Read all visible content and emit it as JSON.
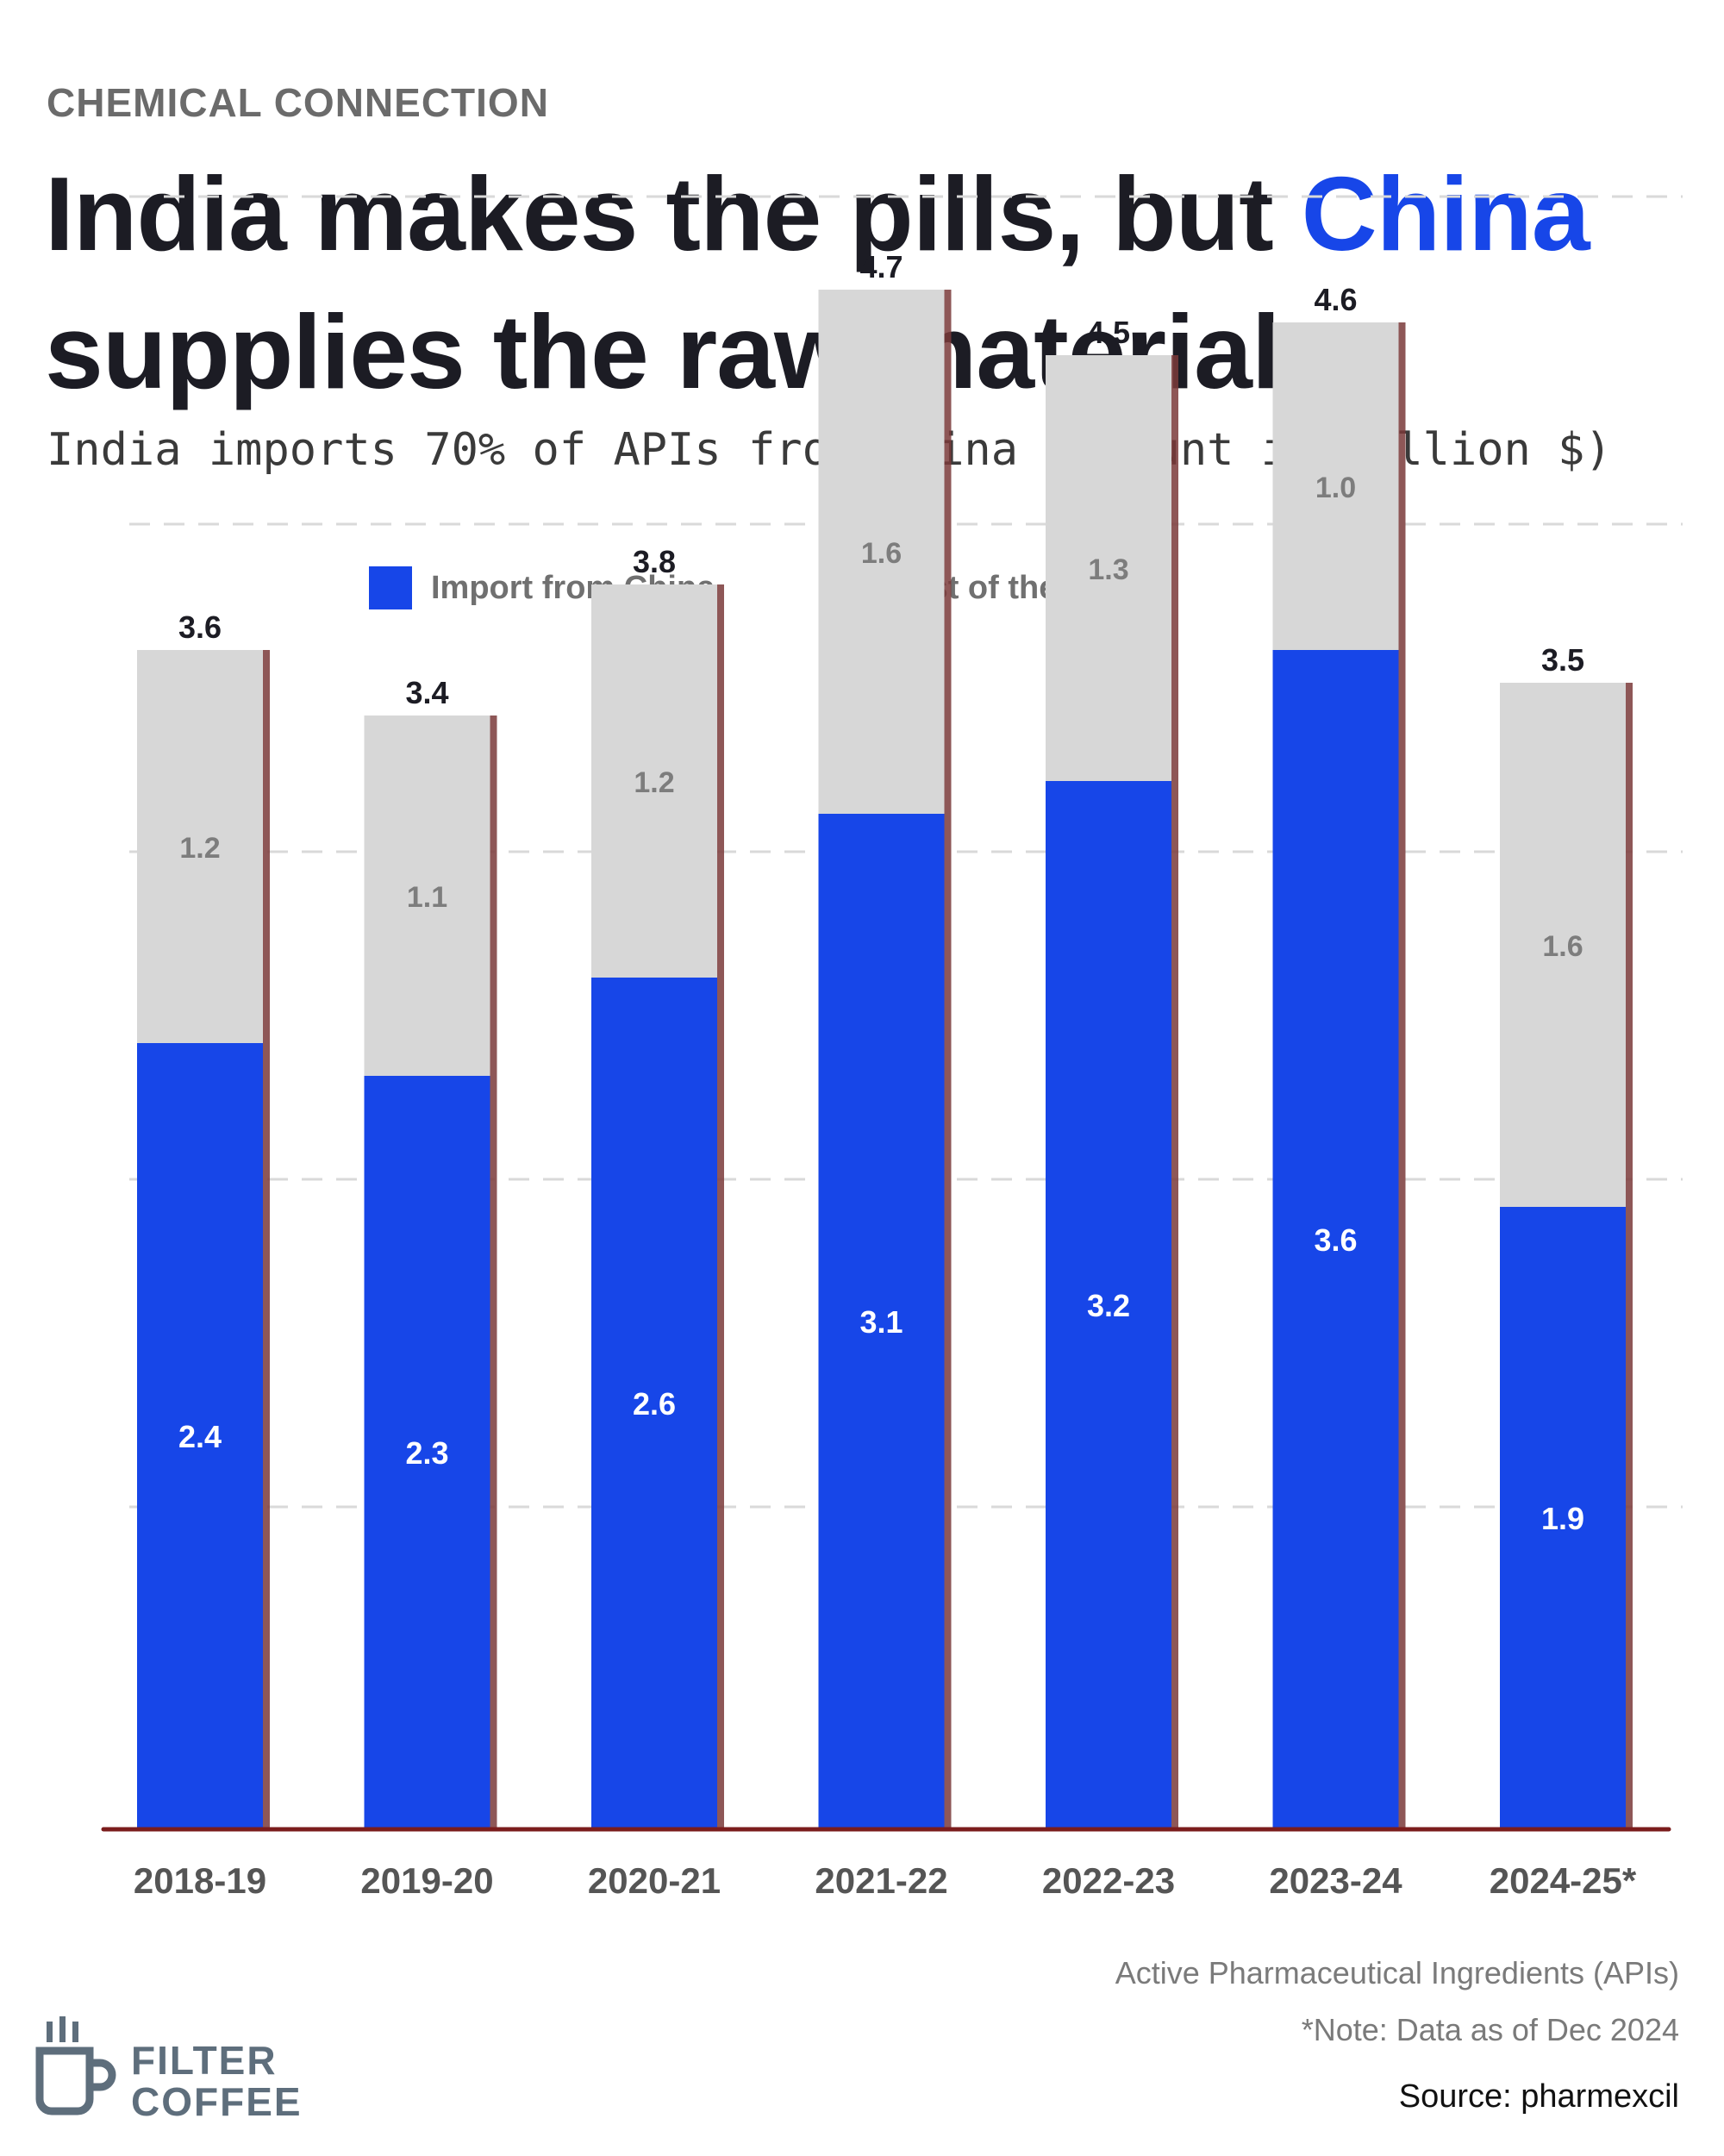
{
  "header": {
    "kicker": "CHEMICAL CONNECTION",
    "title_part1": "India makes the pills, but ",
    "title_highlight": "China",
    "title_part2": "supplies the raw materials",
    "subtitle": "India imports 70% of APIs from China (Amount in Billion $)"
  },
  "legend": {
    "china_label": "Import from China",
    "rest_label": "Rest of the world"
  },
  "colors": {
    "china": "#1746e8",
    "rest": "#d7d7d7",
    "shadow": "#7a3a3a",
    "axis": "#7b1c1c",
    "grid": "#d9d9d9"
  },
  "chart_data": {
    "type": "bar",
    "stacked": true,
    "categories": [
      "2018-19",
      "2019-20",
      "2020-21",
      "2021-22",
      "2022-23",
      "2023-24",
      "2024-25*"
    ],
    "series": [
      {
        "name": "Import from China",
        "values": [
          2.4,
          2.3,
          2.6,
          3.1,
          3.2,
          3.6,
          1.9
        ]
      },
      {
        "name": "Rest of the world",
        "values": [
          1.2,
          1.1,
          1.2,
          1.6,
          1.3,
          1.0,
          1.6
        ]
      }
    ],
    "totals": [
      "3.6",
      "3.4",
      "3.8",
      "4.7",
      "4.5",
      "4.6",
      "3.5"
    ],
    "china_labels": [
      "2.4",
      "2.3",
      "2.6",
      "3.1",
      "3.2",
      "3.6",
      "1.9"
    ],
    "rest_labels": [
      "1.2",
      "1.1",
      "1.2",
      "1.6",
      "1.3",
      "1.0",
      "1.6"
    ],
    "stack_tops": [
      3.6,
      3.4,
      3.8,
      4.7,
      4.5,
      4.6,
      3.5
    ],
    "ylim": [
      0,
      5
    ],
    "grid": true,
    "gridlines": [
      1,
      2,
      3,
      4,
      5
    ],
    "legend_position": "top"
  },
  "footer": {
    "note1": "Active Pharmaceutical Ingredients (APIs)",
    "note2": "*Note: Data as of Dec 2024",
    "source": "Source: pharmexcil",
    "logo_line1": "FILTER",
    "logo_line2": "COFFEE"
  }
}
